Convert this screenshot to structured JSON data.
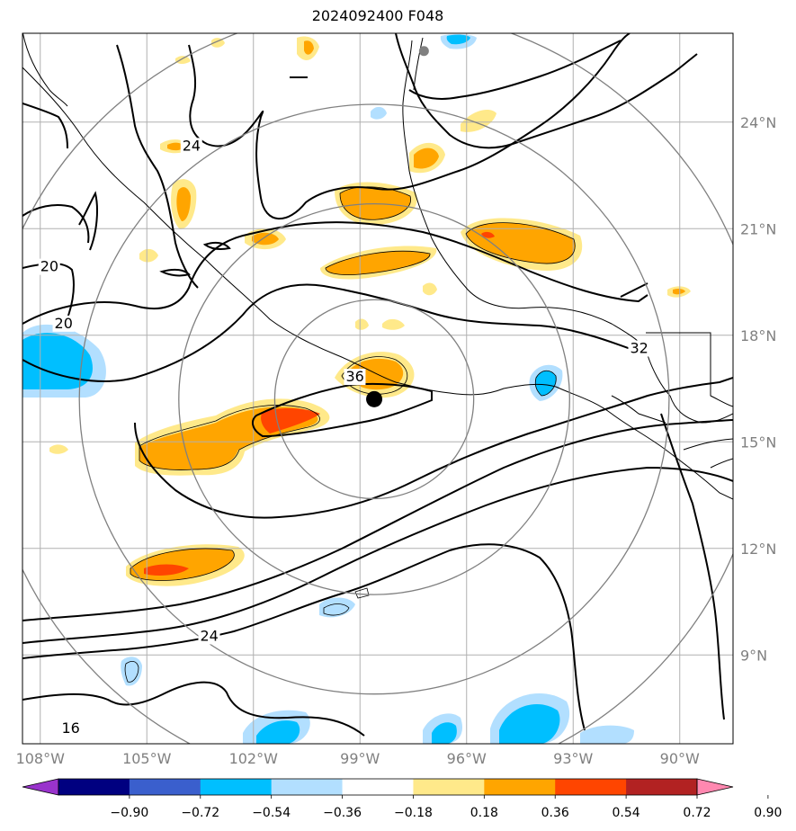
{
  "title": "2024092400 F048",
  "axes": {
    "lon_labels": [
      "108°W",
      "105°W",
      "102°W",
      "99°W",
      "96°W",
      "93°W",
      "90°W"
    ],
    "lon_values": [
      -108,
      -105,
      -102,
      -99,
      -96,
      -93,
      -90
    ],
    "lat_labels": [
      "24°N",
      "21°N",
      "18°N",
      "15°N",
      "12°N",
      "9°N"
    ],
    "lat_values": [
      24,
      21,
      18,
      15,
      12,
      9
    ],
    "lon_range": [
      -108.5,
      -88.5
    ],
    "lat_range": [
      6.5,
      26.5
    ],
    "grid": true,
    "colors": {
      "grid": "#b0b0b0",
      "labels": "#808080"
    }
  },
  "contour_labels": [
    {
      "text": "24",
      "lon": -104.0,
      "lat": 23.2
    },
    {
      "text": "20",
      "lon": -108.0,
      "lat": 19.8
    },
    {
      "text": "20",
      "lon": -107.6,
      "lat": 18.2
    },
    {
      "text": "36",
      "lon": -99.4,
      "lat": 16.7
    },
    {
      "text": "32",
      "lon": -91.4,
      "lat": 17.5
    },
    {
      "text": "24",
      "lon": -103.5,
      "lat": 9.4
    },
    {
      "text": "16",
      "lon": -107.4,
      "lat": 6.8
    }
  ],
  "storm_center": {
    "lon": -98.6,
    "lat": 16.2,
    "color": "#000000"
  },
  "secondary_marker": {
    "lon": -97.2,
    "lat": 26.0,
    "color": "#808080"
  },
  "range_rings": {
    "center_lon": -98.6,
    "center_lat": 16.2,
    "radii_deg": [
      2.8,
      5.5,
      8.3,
      11.0
    ],
    "color": "#808080"
  },
  "colorbar": {
    "ticks": [
      "−0.90",
      "−0.72",
      "−0.54",
      "−0.36",
      "−0.18",
      "0.18",
      "0.36",
      "0.54",
      "0.72",
      "0.90"
    ],
    "colors": [
      "#9933cc",
      "#000080",
      "#3a5fcd",
      "#00bfff",
      "#b2dfff",
      "#ffffff",
      "#ffe98a",
      "#ffa500",
      "#ff4500",
      "#b22222",
      "#ff88b0"
    ]
  }
}
